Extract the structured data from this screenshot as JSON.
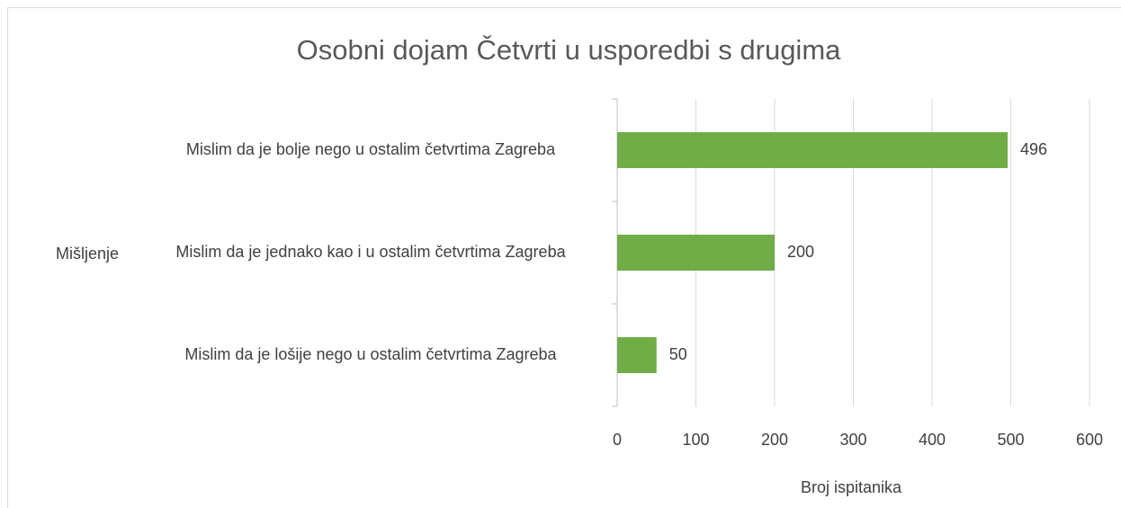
{
  "chart_data": {
    "type": "bar",
    "orientation": "horizontal",
    "title": "Osobni dojam Četvrti u usporedbi s drugima",
    "x_label": "Broj ispitanika",
    "y_label": "Mišljenje",
    "categories": [
      "Mislim da je bolje nego u ostalim četvrtima Zagreba",
      "Mislim da je jednako kao i u ostalim četvrtima Zagreba",
      "Mislim da je lošije nego u ostalim četvrtima Zagreba"
    ],
    "values": [
      496,
      200,
      50
    ],
    "color": "#70ad47",
    "xlim": [
      0,
      600
    ],
    "xticks": [
      0,
      100,
      200,
      300,
      400,
      500,
      600
    ],
    "grid": true
  }
}
